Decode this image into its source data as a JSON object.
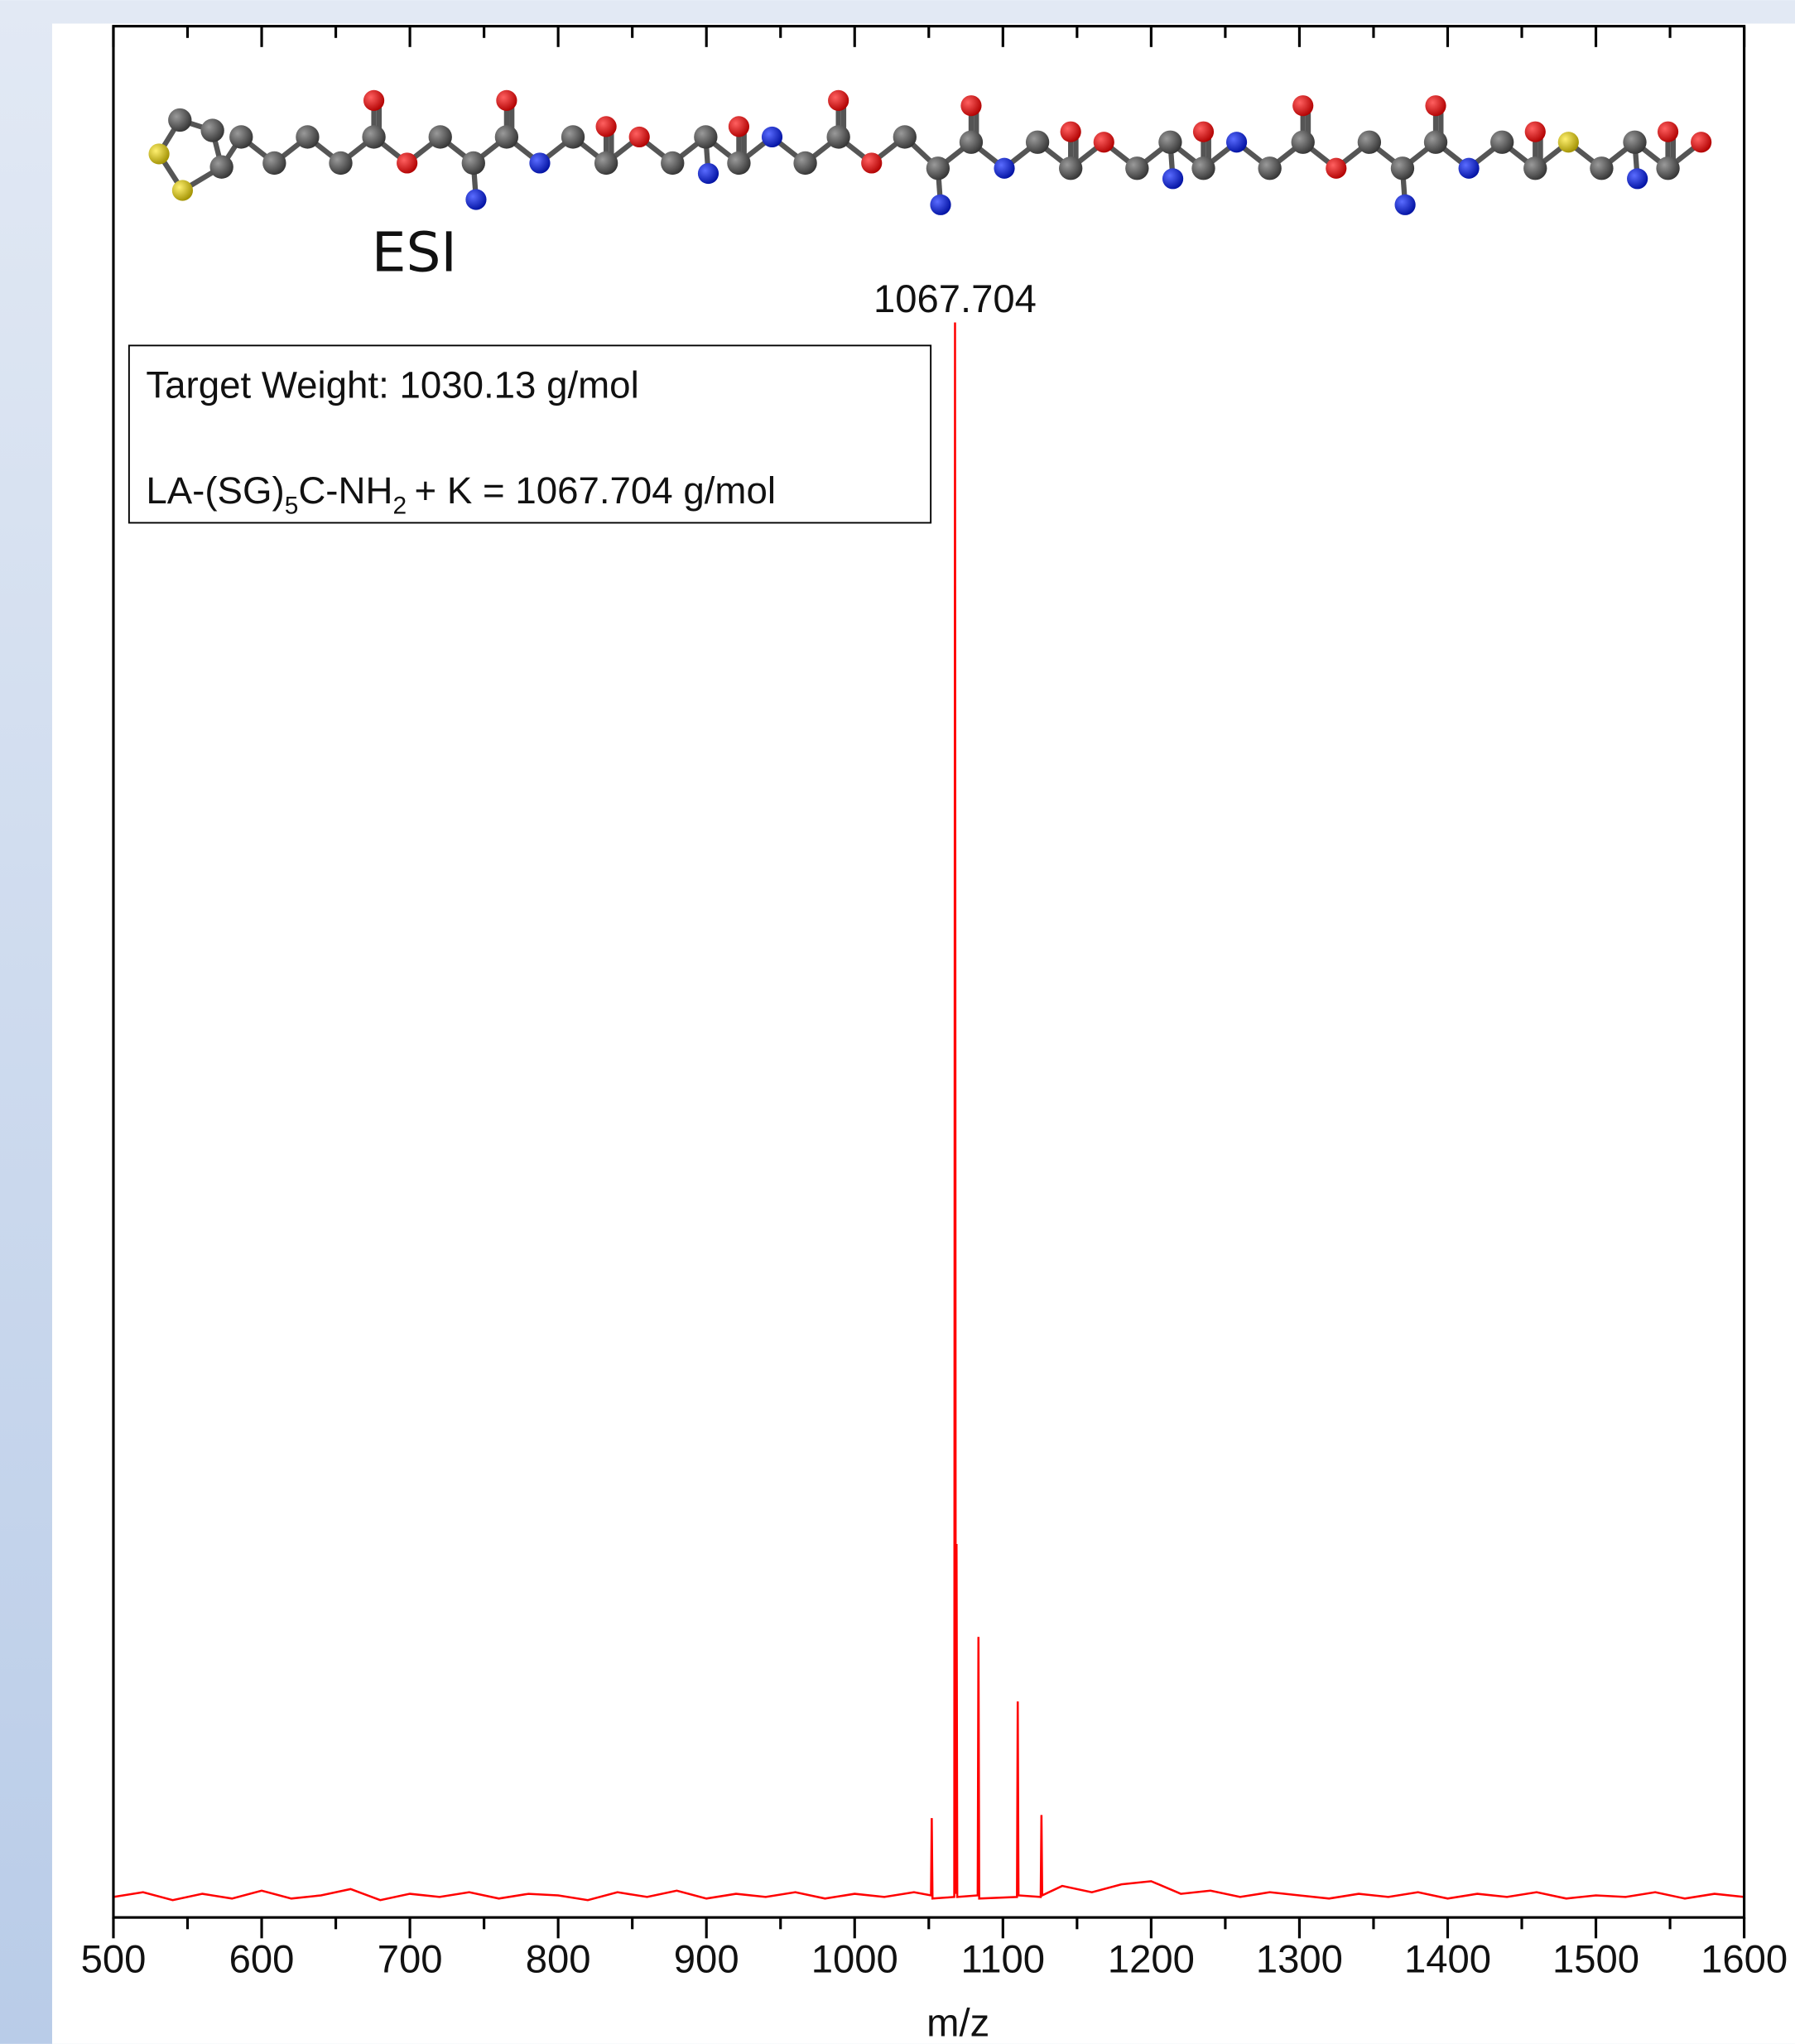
{
  "chart_data": {
    "type": "line",
    "xlabel": "m/z",
    "structure_label": "ESI",
    "peak_label": "1067.704",
    "annotation": {
      "target": "Target Weight: 1030.13 g/mol",
      "formula": [
        "LA-(SG)",
        "5",
        "C-NH",
        "2",
        "+ K = 1067.704 g/mol"
      ]
    },
    "color": "#ff0000",
    "xlim": [
      500,
      1600
    ],
    "ylim": [
      0,
      120
    ],
    "xticks": [
      500,
      600,
      700,
      800,
      900,
      1000,
      1100,
      1200,
      1300,
      1400,
      1500,
      1600
    ],
    "xminorticks": [
      550,
      650,
      750,
      850,
      950,
      1050,
      1150,
      1250,
      1350,
      1450,
      1550
    ],
    "x": [
      500,
      520,
      540,
      560,
      580,
      600,
      620,
      640,
      660,
      680,
      700,
      720,
      740,
      760,
      780,
      800,
      820,
      840,
      860,
      880,
      900,
      920,
      940,
      960,
      980,
      1000,
      1020,
      1040,
      1051.5,
      1052,
      1052.5,
      1067.2,
      1067.7,
      1068.2,
      1068.7,
      1069.2,
      1083,
      1083.5,
      1084,
      1109.5,
      1110,
      1110.5,
      1125.5,
      1126,
      1126.5,
      1140,
      1160,
      1180,
      1200,
      1220,
      1240,
      1260,
      1280,
      1300,
      1320,
      1340,
      1360,
      1380,
      1400,
      1420,
      1440,
      1460,
      1480,
      1500,
      1520,
      1540,
      1560,
      1580,
      1600
    ],
    "values": [
      1.3,
      1.6,
      1.1,
      1.5,
      1.2,
      1.7,
      1.2,
      1.4,
      1.8,
      1.1,
      1.5,
      1.3,
      1.6,
      1.2,
      1.5,
      1.4,
      1.1,
      1.6,
      1.3,
      1.7,
      1.2,
      1.5,
      1.3,
      1.6,
      1.2,
      1.5,
      1.3,
      1.6,
      1.4,
      6.3,
      1.2,
      1.3,
      101.2,
      1.5,
      23.7,
      1.3,
      1.4,
      17.8,
      1.2,
      1.3,
      13.7,
      1.4,
      1.3,
      6.5,
      1.4,
      2.0,
      1.6,
      2.1,
      2.3,
      1.5,
      1.7,
      1.3,
      1.6,
      1.4,
      1.2,
      1.5,
      1.3,
      1.6,
      1.2,
      1.5,
      1.3,
      1.6,
      1.2,
      1.4,
      1.3,
      1.6,
      1.2,
      1.5,
      1.3
    ]
  }
}
